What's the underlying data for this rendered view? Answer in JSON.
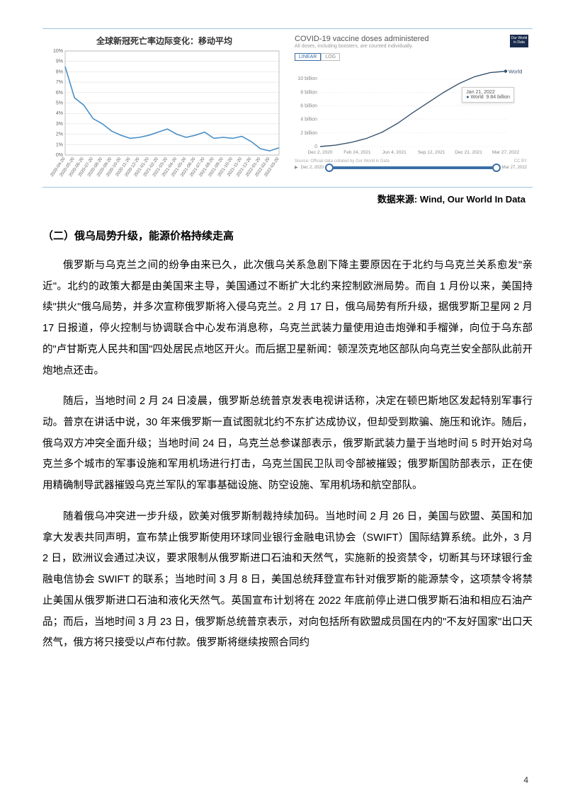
{
  "left_chart": {
    "type": "line",
    "title": "全球新冠死亡率边际变化：移动平均",
    "y_ticks": [
      "0%",
      "1%",
      "2%",
      "3%",
      "4%",
      "5%",
      "6%",
      "7%",
      "8%",
      "9%",
      "10%"
    ],
    "x_labels": [
      "2020-04-20",
      "2020-05-20",
      "2020-06-20",
      "2020-07-20",
      "2020-08-20",
      "2020-09-20",
      "2020-10-20",
      "2020-11-20",
      "2020-12-20",
      "2021-01-20",
      "2021-02-20",
      "2021-03-20",
      "2021-04-20",
      "2021-05-20",
      "2021-06-20",
      "2021-07-20",
      "2021-08-20",
      "2021-09-20",
      "2021-10-20",
      "2021-11-20",
      "2021-12-20",
      "2022-01-20",
      "2022-02-20",
      "2022-03-20"
    ],
    "series_values": [
      8.5,
      5.5,
      4.8,
      3.5,
      3.0,
      2.3,
      1.9,
      1.6,
      1.7,
      1.9,
      2.2,
      2.5,
      2.0,
      1.7,
      1.9,
      2.2,
      1.6,
      1.7,
      1.6,
      1.8,
      1.3,
      0.6,
      0.4,
      0.7
    ],
    "ylim": [
      0,
      10
    ],
    "line_color": "#4a8fc7",
    "line_width": 1.6,
    "grid_color": "#d9d9d9",
    "axis_color": "#333333",
    "label_fontsize": 7,
    "title_fontsize": 12
  },
  "right_chart": {
    "type": "line",
    "title": "COVID-19 vaccine doses administered",
    "subtitle": "All doses, including boosters, are counted individually.",
    "badge": "Our World in Data",
    "tabs": {
      "linear": "LINEAR",
      "log": "LOG"
    },
    "y_ticks": [
      "0",
      "2 billion",
      "4 billion",
      "6 billion",
      "8 billion",
      "10 billion"
    ],
    "x_labels": [
      "Dec 2, 2020",
      "Feb 24, 2021",
      "Jun 4, 2021",
      "Sep 12, 2021",
      "Dec 21, 2021",
      "Mar 27, 2022"
    ],
    "series_label": "World",
    "tooltip_date": "Jan 21, 2022",
    "tooltip_dot": "World",
    "tooltip_value": "9.84 billion",
    "series_values_billion": [
      0,
      0.2,
      0.6,
      1.2,
      2.1,
      3.4,
      5.0,
      6.5,
      8.0,
      9.3,
      10.3,
      10.9,
      11.1
    ],
    "ymax_billion": 12,
    "line_color": "#38536e",
    "grid_color": "#e6e6e6",
    "footer_left": "Source: Official data collated by Our World in Data",
    "footer_right": "CC BY",
    "slider_start": "Dec 2, 2020",
    "slider_end": "Mar 27, 2022",
    "slider_play": "▶"
  },
  "source": "数据来源: Wind, Our World In Data",
  "heading": "（二）俄乌局势升级，能源价格持续走高",
  "paragraphs": [
    "俄罗斯与乌克兰之间的纷争由来已久，此次俄乌关系急剧下降主要原因在于北约与乌克兰关系愈发\"亲近\"。北约的政策大都是由美国来主导，美国通过不断扩大北约来控制欧洲局势。而自 1 月份以来，美国持续\"拱火\"俄乌局势，并多次宣称俄罗斯将入侵乌克兰。2 月 17 日，俄乌局势有所升级，据俄罗斯卫星网 2 月 17 日报道，停火控制与协调联合中心发布消息称，乌克兰武装力量使用迫击炮弹和手榴弹，向位于乌东部的\"卢甘斯克人民共和国\"四处居民点地区开火。而后据卫星新闻：顿涅茨克地区部队向乌克兰安全部队此前开炮地点还击。",
    "随后，当地时间 2 月 24 日凌晨，俄罗斯总统普京发表电视讲话称，决定在顿巴斯地区发起特别军事行动。普京在讲话中说，30 年来俄罗斯一直试图就北约不东扩达成协议，但却受到欺骗、施压和讹诈。随后，俄乌双方冲突全面升级；当地时间 24 日，乌克兰总参谋部表示，俄罗斯武装力量于当地时间 5 时开始对乌克兰多个城市的军事设施和军用机场进行打击，乌克兰国民卫队司令部被摧毁；俄罗斯国防部表示，正在使用精确制导武器摧毁乌克兰军队的军事基础设施、防空设施、军用机场和航空部队。",
    "随着俄乌冲突进一步升级，欧美对俄罗斯制裁持续加码。当地时间 2 月 26 日，美国与欧盟、英国和加拿大发表共同声明，宣布禁止俄罗斯使用环球同业银行金融电讯协会（SWIFT）国际结算系统。此外，3 月 2 日，欧洲议会通过决议，要求限制从俄罗斯进口石油和天然气，实施新的投资禁令，切断其与环球银行金融电信协会 SWIFT 的联系；当地时间 3 月 8 日，美国总统拜登宣布针对俄罗斯的能源禁令，这项禁令将禁止美国从俄罗斯进口石油和液化天然气。英国宣布计划将在 2022 年底前停止进口俄罗斯石油和相应石油产品；而后，当地时间 3 月 23 日，俄罗斯总统普京表示，对向包括所有欧盟成员国在内的\"不友好国家\"出口天然气，俄方将只接受以卢布付款。俄罗斯将继续按照合同约"
  ],
  "page_number": "4"
}
